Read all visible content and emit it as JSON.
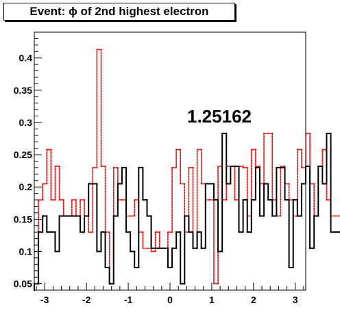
{
  "chart_data": {
    "type": "histogram",
    "title": "Event: ϕ of 2nd highest electron",
    "annotation": "1.25162",
    "xlim": [
      -3.25,
      3.25
    ],
    "ylim": [
      0.04,
      0.44
    ],
    "x_ticks": [
      "-3",
      "-2",
      "-1",
      "0",
      "1",
      "2",
      "3"
    ],
    "x_tick_values": [
      -3,
      -2,
      -1,
      0,
      1,
      2,
      3
    ],
    "y_ticks": [
      "0.05",
      "0.1",
      "0.15",
      "0.2",
      "0.25",
      "0.3",
      "0.35",
      "0.4"
    ],
    "y_tick_values": [
      0.05,
      0.1,
      0.15,
      0.2,
      0.25,
      0.3,
      0.35,
      0.4
    ],
    "bin_edges_start": -3.25,
    "bin_width": 0.1,
    "series": [
      {
        "style": "solid",
        "color": "#000000",
        "values": [
          0.05,
          0.13,
          0.155,
          0.13,
          0.13,
          0.1,
          0.155,
          0.155,
          0.155,
          0.155,
          0.155,
          0.13,
          0.155,
          0.205,
          0.205,
          0.1,
          0.13,
          0.075,
          0.05,
          0.155,
          0.205,
          0.23,
          0.13,
          0.1,
          0.075,
          0.23,
          0.18,
          0.155,
          0.105,
          0.105,
          0.105,
          0.105,
          0.075,
          0.105,
          0.13,
          0.05,
          0.155,
          0.13,
          0.105,
          0.13,
          0.105,
          0.205,
          0.205,
          0.18,
          0.1,
          0.283,
          0.205,
          0.232,
          0.232,
          0.13,
          0.18,
          0.13,
          0.18,
          0.23,
          0.155,
          0.205,
          0.18,
          0.155,
          0.23,
          0.23,
          0.18,
          0.075,
          0.18,
          0.155,
          0.205,
          0.232,
          0.105,
          0.155,
          0.232,
          0.205,
          0.283,
          0.13,
          0.13,
          0.13,
          0.13
        ]
      },
      {
        "style": "dotted",
        "color": "#ff0000",
        "values": [
          0.05,
          0.18,
          0.205,
          0.258,
          0.18,
          0.232,
          0.18,
          0.155,
          0.155,
          0.18,
          0.155,
          0.18,
          0.155,
          0.13,
          0.23,
          0.413,
          0.232,
          0.13,
          0.05,
          0.23,
          0.18,
          0.18,
          0.155,
          0.155,
          0.18,
          0.13,
          0.105,
          0.105,
          0.1,
          0.13,
          0.105,
          0.105,
          0.13,
          0.23,
          0.258,
          0.205,
          0.13,
          0.23,
          0.105,
          0.258,
          0.205,
          0.18,
          0.18,
          0.05,
          0.232,
          0.18,
          0.232,
          0.232,
          0.18,
          0.232,
          0.23,
          0.155,
          0.258,
          0.232,
          0.205,
          0.283,
          0.283,
          0.18,
          0.155,
          0.232,
          0.205,
          0.18,
          0.155,
          0.258,
          0.23,
          0.283,
          0.205,
          0.155,
          0.232,
          0.258,
          0.18,
          0.155,
          0.155,
          0.155,
          0.155
        ]
      }
    ]
  }
}
